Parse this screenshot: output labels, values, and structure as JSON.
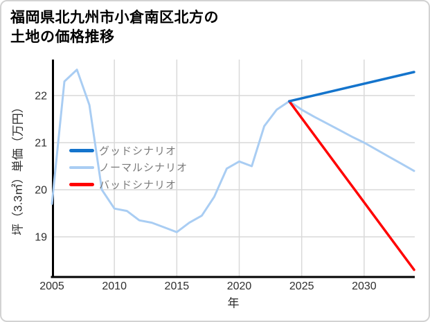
{
  "header": {
    "title_line1": "福岡県北九州市小倉南区北方の",
    "title_line2": "土地の価格推移"
  },
  "chart_data": {
    "type": "line",
    "title": "福岡県北九州市小倉南区北方の土地の価格推移",
    "xlabel": "年",
    "ylabel": "坪（3.3㎡）単価（万円）",
    "xlim": [
      2005,
      2034
    ],
    "ylim": [
      18.15,
      22.76
    ],
    "xticks": [
      2005,
      2010,
      2015,
      2020,
      2025,
      2030
    ],
    "yticks": [
      19,
      20,
      21,
      22
    ],
    "grid": true,
    "legend_position": "upper-left-inside",
    "unit": "万円",
    "series": [
      {
        "name": "グッドシナリオ",
        "color": "#1474cc",
        "x": [
          2024,
          2034
        ],
        "values": [
          21.88,
          22.5
        ]
      },
      {
        "name": "ノーマルシナリオ",
        "color": "#a9cdf3",
        "x": [
          2005,
          2006,
          2007,
          2008,
          2009,
          2010,
          2011,
          2012,
          2013,
          2014,
          2015,
          2016,
          2017,
          2018,
          2019,
          2020,
          2021,
          2022,
          2023,
          2024,
          2025,
          2026,
          2027,
          2028,
          2029,
          2030,
          2031,
          2032,
          2033,
          2034
        ],
        "values": [
          19.7,
          22.3,
          22.55,
          21.8,
          20.0,
          19.6,
          19.55,
          19.35,
          19.3,
          19.2,
          19.1,
          19.3,
          19.45,
          19.85,
          20.45,
          20.6,
          20.5,
          21.35,
          21.7,
          21.88,
          21.7,
          21.55,
          21.41,
          21.27,
          21.13,
          21.0,
          20.85,
          20.7,
          20.55,
          20.4
        ]
      },
      {
        "name": "バッドシナリオ",
        "color": "#ff0000",
        "x": [
          2024,
          2034
        ],
        "values": [
          21.88,
          18.3
        ]
      }
    ],
    "colors": {
      "grid": "#d9d9d9",
      "spine": "#000000",
      "tick_label": "#2e2e2e",
      "legend_text": "#7a7a7a"
    }
  }
}
